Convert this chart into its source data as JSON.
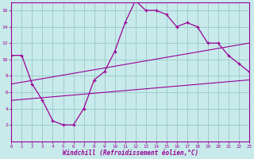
{
  "xlabel": "Windchill (Refroidissement éolien,°C)",
  "background_color": "#c8eaea",
  "grid_color": "#a0cccc",
  "line_color": "#990099",
  "hours": [
    0,
    1,
    2,
    3,
    4,
    5,
    6,
    7,
    8,
    9,
    10,
    11,
    12,
    13,
    14,
    15,
    16,
    17,
    18,
    19,
    20,
    21,
    22,
    23
  ],
  "temp": [
    10.5,
    10.5,
    7.0,
    5.0,
    2.5,
    2.0,
    2.0,
    4.0,
    7.5,
    8.5,
    11.0,
    14.5,
    17.2,
    16.0,
    16.0,
    15.5,
    14.0,
    14.5,
    14.0,
    12.0,
    12.0,
    10.5,
    9.5,
    8.5
  ],
  "line1_x": [
    0,
    23
  ],
  "line1_y": [
    7.0,
    12.0
  ],
  "line2_x": [
    0,
    23
  ],
  "line2_y": [
    5.0,
    7.5
  ],
  "ylim": [
    0,
    17
  ],
  "yticks": [
    2,
    4,
    6,
    8,
    10,
    12,
    14,
    16
  ],
  "xlim": [
    0,
    23
  ],
  "xticks": [
    0,
    1,
    2,
    3,
    4,
    5,
    6,
    7,
    8,
    9,
    10,
    11,
    12,
    13,
    14,
    15,
    16,
    17,
    18,
    19,
    20,
    21,
    22,
    23
  ]
}
